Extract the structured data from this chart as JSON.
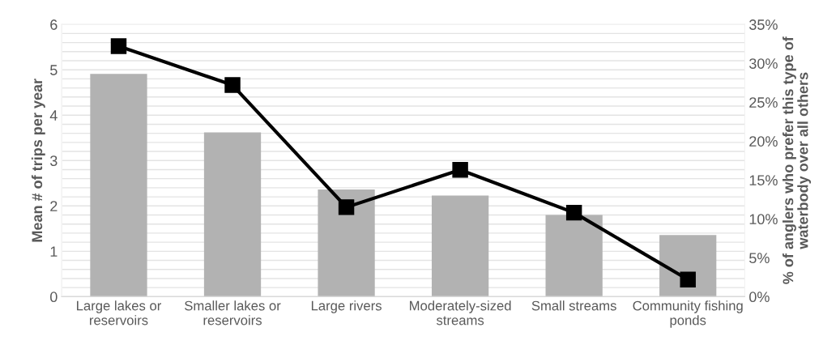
{
  "chart_data": {
    "type": "bar",
    "categories": [
      "Large lakes or reservoirs",
      "Smaller lakes or reservoirs",
      "Large rivers",
      "Moderately-sized streams",
      "Small streams",
      "Community fishing ponds"
    ],
    "series": [
      {
        "color": "#b2b2b2",
        "values": [
          4.91,
          3.62,
          2.36,
          2.23,
          1.8,
          1.36
        ]
      },
      {
        "type": "line",
        "axis": "y2",
        "color": "#000000",
        "values": [
          32.2,
          27.2,
          11.5,
          16.3,
          10.8,
          2.2
        ]
      }
    ],
    "ylabel": "Mean # of trips per year",
    "y2label": "% of anglers who prefer this type of waterbody over all others",
    "ylim": [
      0,
      6
    ],
    "yticks": [
      0,
      {
        "value": 0.2,
        "label": null
      },
      {
        "value": 0.4,
        "label": null
      },
      {
        "value": 0.6,
        "label": null
      },
      {
        "value": 0.8,
        "label": null
      },
      1,
      {
        "value": 1.2,
        "label": null
      },
      {
        "value": 1.4,
        "label": null
      },
      {
        "value": 1.6,
        "label": null
      },
      {
        "value": 1.8,
        "label": null
      },
      2,
      {
        "value": 2.2,
        "label": null
      },
      {
        "value": 2.4,
        "label": null
      },
      {
        "value": 2.6,
        "label": null
      },
      {
        "value": 2.8,
        "label": null
      },
      3,
      {
        "value": 3.2,
        "label": null
      },
      {
        "value": 3.4,
        "label": null
      },
      {
        "value": 3.6,
        "label": null
      },
      {
        "value": 3.8,
        "label": null
      },
      4,
      {
        "value": 4.2,
        "label": null
      },
      {
        "value": 4.4,
        "label": null
      },
      {
        "value": 4.6,
        "label": null
      },
      {
        "value": 4.8,
        "label": null
      },
      5,
      {
        "value": 5.2,
        "label": null
      },
      {
        "value": 5.4,
        "label": null
      },
      {
        "value": 5.6,
        "label": null
      },
      {
        "value": 5.8,
        "label": null
      },
      6
    ],
    "y2lim": [
      0,
      35
    ],
    "y2ticks": [
      {
        "value": 0,
        "label": "0%"
      },
      {
        "value": 5,
        "label": "5%"
      },
      {
        "value": 10,
        "label": "10%"
      },
      {
        "value": 15,
        "label": "15%"
      },
      {
        "value": 20,
        "label": "20%"
      },
      {
        "value": 25,
        "label": "25%"
      },
      {
        "value": 30,
        "label": "30%"
      },
      {
        "value": 35,
        "label": "35%"
      }
    ],
    "grid": "y",
    "marker": "square",
    "line_style": "solid",
    "legend": false
  }
}
